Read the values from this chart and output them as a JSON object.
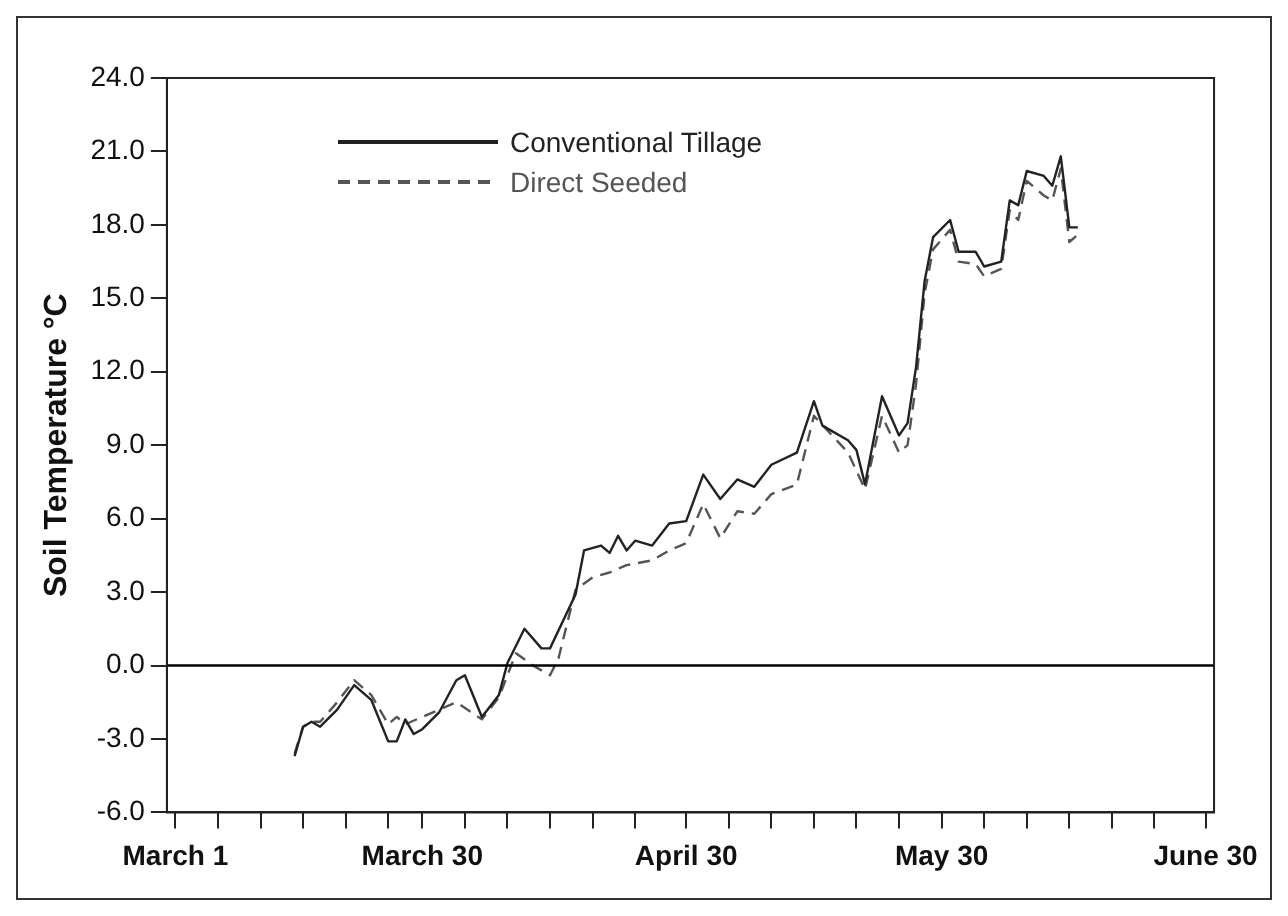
{
  "chart_data": {
    "type": "line",
    "ylabel": "Soil Temperature °C",
    "legend": "top left",
    "grid": false,
    "marker": "none",
    "xlim": [
      "--02-28",
      "--07-01"
    ],
    "xticks": [
      {
        "value": "--03-01",
        "label": "March 1"
      },
      {
        "value": "--03-06",
        "label": null
      },
      {
        "value": "--03-11",
        "label": null
      },
      {
        "value": "--03-16",
        "label": null
      },
      {
        "value": "--03-21",
        "label": null
      },
      {
        "value": "--03-26",
        "label": null
      },
      {
        "value": "--03-30",
        "label": "March 30"
      },
      {
        "value": "--04-04",
        "label": null
      },
      {
        "value": "--04-09",
        "label": null
      },
      {
        "value": "--04-14",
        "label": null
      },
      {
        "value": "--04-19",
        "label": null
      },
      {
        "value": "--04-24",
        "label": null
      },
      {
        "value": "--04-30",
        "label": "April 30"
      },
      {
        "value": "--05-05",
        "label": null
      },
      {
        "value": "--05-10",
        "label": null
      },
      {
        "value": "--05-15",
        "label": null
      },
      {
        "value": "--05-20",
        "label": null
      },
      {
        "value": "--05-25",
        "label": null
      },
      {
        "value": "--05-30",
        "label": "May 30"
      },
      {
        "value": "--06-04",
        "label": null
      },
      {
        "value": "--06-09",
        "label": null
      },
      {
        "value": "--06-14",
        "label": null
      },
      {
        "value": "--06-19",
        "label": null
      },
      {
        "value": "--06-24",
        "label": null
      },
      {
        "value": "--06-30",
        "label": "June 30"
      }
    ],
    "ylim": [
      -6,
      24
    ],
    "yticks": [
      {
        "value": -6,
        "label": "-6.0"
      },
      {
        "value": -3,
        "label": "-3.0"
      },
      {
        "value": 0,
        "label": "0.0"
      },
      {
        "value": 3,
        "label": "3.0"
      },
      {
        "value": 6,
        "label": "6.0"
      },
      {
        "value": 9,
        "label": "9.0"
      },
      {
        "value": 12,
        "label": "12.0"
      },
      {
        "value": 15,
        "label": "15.0"
      },
      {
        "value": 18,
        "label": "18.0"
      },
      {
        "value": 21,
        "label": "21.0"
      },
      {
        "value": 24,
        "label": "24.0"
      }
    ],
    "ref_lines": [
      {
        "axis": "y",
        "value": 0,
        "color": "#000000"
      }
    ],
    "series": [
      {
        "name": "Conventional Tillage",
        "color": "#222222",
        "line_style": "solid",
        "x": [
          "--03-15",
          "--03-16",
          "--03-17",
          "--03-18",
          "--03-20",
          "--03-22",
          "--03-24",
          "--03-26",
          "--03-27",
          "--03-28",
          "--03-29",
          "--03-30",
          "--04-01",
          "--04-03",
          "--04-04",
          "--04-06",
          "--04-08",
          "--04-09",
          "--04-11",
          "--04-13",
          "--04-14",
          "--04-17",
          "--04-18",
          "--04-20",
          "--04-21",
          "--04-22",
          "--04-23",
          "--04-24",
          "--04-26",
          "--04-28",
          "--04-30",
          "--05-02",
          "--05-04",
          "--05-06",
          "--05-08",
          "--05-10",
          "--05-13",
          "--05-15",
          "--05-16",
          "--05-19",
          "--05-20",
          "--05-21",
          "--05-23",
          "--05-25",
          "--05-26",
          "--05-27",
          "--05-28",
          "--05-29",
          "--05-31",
          "--06-01",
          "--06-03",
          "--06-04",
          "--06-06",
          "--06-07",
          "--06-08",
          "--06-09",
          "--06-11",
          "--06-12",
          "--06-13",
          "--06-14",
          "--06-15"
        ],
        "values": [
          -3.7,
          -2.5,
          -2.3,
          -2.5,
          -1.8,
          -0.8,
          -1.4,
          -3.1,
          -3.1,
          -2.2,
          -2.8,
          -2.6,
          -1.9,
          -0.6,
          -0.4,
          -2.1,
          -1.2,
          0.1,
          1.5,
          0.7,
          0.7,
          2.9,
          4.7,
          4.9,
          4.6,
          5.3,
          4.7,
          5.1,
          4.9,
          5.8,
          5.9,
          7.8,
          6.8,
          7.6,
          7.3,
          8.2,
          8.7,
          10.8,
          9.8,
          9.2,
          8.8,
          7.4,
          11.0,
          9.4,
          9.9,
          12.2,
          15.7,
          17.5,
          18.2,
          16.9,
          16.9,
          16.3,
          16.5,
          19.0,
          18.8,
          20.2,
          20.0,
          19.6,
          20.8,
          17.9,
          17.9
        ]
      },
      {
        "name": "Direct Seeded",
        "color": "#555555",
        "line_style": "dashed",
        "x": [
          "--03-15",
          "--03-16",
          "--03-17",
          "--03-18",
          "--03-20",
          "--03-22",
          "--03-24",
          "--03-26",
          "--03-27",
          "--03-28",
          "--03-30",
          "--04-01",
          "--04-03",
          "--04-06",
          "--04-08",
          "--04-10",
          "--04-12",
          "--04-14",
          "--04-15",
          "--04-17",
          "--04-19",
          "--04-21",
          "--04-23",
          "--04-26",
          "--04-28",
          "--04-30",
          "--05-02",
          "--05-04",
          "--05-06",
          "--05-08",
          "--05-10",
          "--05-13",
          "--05-15",
          "--05-19",
          "--05-21",
          "--05-23",
          "--05-25",
          "--05-26",
          "--05-27",
          "--05-28",
          "--05-29",
          "--05-31",
          "--06-01",
          "--06-03",
          "--06-04",
          "--06-06",
          "--06-07",
          "--06-08",
          "--06-09",
          "--06-11",
          "--06-12",
          "--06-13",
          "--06-14",
          "--06-15"
        ],
        "values": [
          -3.6,
          -2.5,
          -2.3,
          -2.3,
          -1.5,
          -0.6,
          -1.2,
          -2.4,
          -2.1,
          -2.4,
          -2.1,
          -1.8,
          -1.5,
          -2.2,
          -1.3,
          0.5,
          0.0,
          -0.4,
          0.3,
          3.1,
          3.6,
          3.8,
          4.1,
          4.3,
          4.7,
          5.0,
          6.6,
          5.2,
          6.3,
          6.2,
          7.0,
          7.4,
          10.2,
          8.7,
          7.2,
          10.2,
          8.7,
          9.0,
          11.5,
          15.2,
          17.0,
          17.8,
          16.5,
          16.4,
          15.9,
          16.2,
          18.6,
          18.2,
          19.8,
          19.2,
          19.0,
          20.3,
          17.3,
          17.6
        ]
      }
    ]
  }
}
